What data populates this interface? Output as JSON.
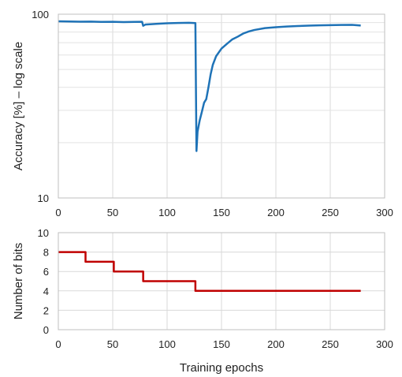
{
  "chart_data": [
    {
      "type": "line",
      "xlabel": "",
      "ylabel": "Accuracy [%] – log scale",
      "y_scale": "log",
      "xlim": [
        0,
        300
      ],
      "ylim": [
        10,
        100
      ],
      "x_ticks": [
        0,
        50,
        100,
        150,
        200,
        250,
        300
      ],
      "y_ticks": [
        10,
        100
      ],
      "x_tick_labels": [
        "0",
        "50",
        "100",
        "150",
        "200",
        "250",
        "300"
      ],
      "y_tick_labels": [
        "10",
        "100"
      ],
      "grid": true,
      "color": "#1f73b7",
      "series": [
        {
          "points": [
            [
              0,
              91.5
            ],
            [
              10,
              91.3
            ],
            [
              20,
              91.0
            ],
            [
              30,
              91.2
            ],
            [
              40,
              90.8
            ],
            [
              50,
              90.9
            ],
            [
              60,
              90.6
            ],
            [
              70,
              90.8
            ],
            [
              77,
              90.9
            ],
            [
              78,
              86.5
            ],
            [
              80,
              87.8
            ],
            [
              90,
              88.6
            ],
            [
              100,
              89.3
            ],
            [
              110,
              89.6
            ],
            [
              120,
              89.8
            ],
            [
              126,
              89.5
            ],
            [
              127,
              18.0
            ],
            [
              128,
              23.0
            ],
            [
              130,
              26.5
            ],
            [
              132,
              29.5
            ],
            [
              134,
              33.0
            ],
            [
              136,
              34.5
            ],
            [
              138,
              40.0
            ],
            [
              140,
              47.0
            ],
            [
              142,
              53.0
            ],
            [
              145,
              59.0
            ],
            [
              150,
              65.0
            ],
            [
              155,
              69.0
            ],
            [
              160,
              73.0
            ],
            [
              165,
              75.5
            ],
            [
              170,
              78.5
            ],
            [
              175,
              80.5
            ],
            [
              180,
              82.0
            ],
            [
              190,
              84.0
            ],
            [
              200,
              85.0
            ],
            [
              210,
              85.7
            ],
            [
              220,
              86.2
            ],
            [
              230,
              86.6
            ],
            [
              240,
              87.0
            ],
            [
              250,
              87.2
            ],
            [
              260,
              87.4
            ],
            [
              270,
              87.5
            ],
            [
              278,
              86.8
            ]
          ]
        }
      ]
    },
    {
      "type": "line",
      "xlabel": "Training epochs",
      "ylabel": "Number of bits",
      "xlim": [
        0,
        300
      ],
      "ylim": [
        0,
        10
      ],
      "x_ticks": [
        0,
        50,
        100,
        150,
        200,
        250,
        300
      ],
      "y_ticks": [
        0,
        2,
        4,
        6,
        8,
        10
      ],
      "x_tick_labels": [
        "0",
        "50",
        "100",
        "150",
        "200",
        "250",
        "300"
      ],
      "y_tick_labels": [
        "0",
        "2",
        "4",
        "6",
        "8",
        "10"
      ],
      "grid": true,
      "step": true,
      "color": "#c00000",
      "series": [
        {
          "points": [
            [
              0,
              8
            ],
            [
              25,
              7
            ],
            [
              51,
              6
            ],
            [
              78,
              5
            ],
            [
              126,
              4
            ],
            [
              278,
              4
            ]
          ]
        }
      ]
    }
  ]
}
